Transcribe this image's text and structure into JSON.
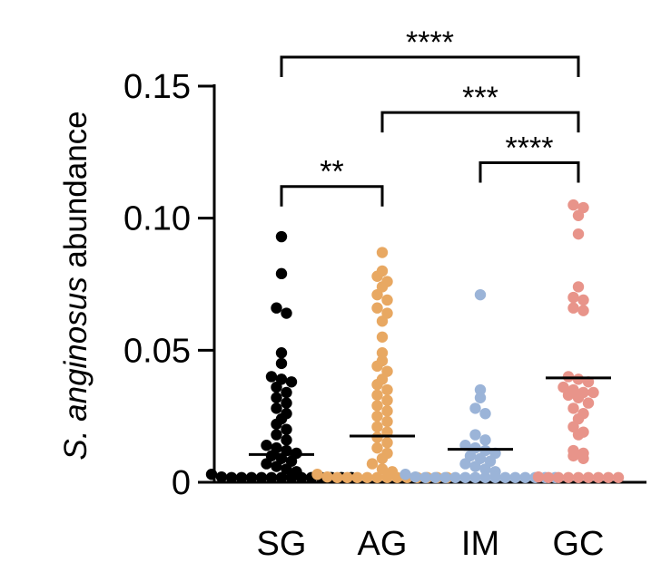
{
  "chart_data": {
    "type": "scatter",
    "title": "",
    "xlabel": "",
    "ylabel": {
      "italic": "S. anginosus",
      "plain": " abundance"
    },
    "ylim": [
      0,
      0.15
    ],
    "yticks": [
      {
        "value": 0,
        "label": "0"
      },
      {
        "value": 0.05,
        "label": "0.05"
      },
      {
        "value": 0.1,
        "label": "0.10"
      },
      {
        "value": 0.15,
        "label": "0.15"
      }
    ],
    "categories": [
      "SG",
      "AG",
      "IM",
      "GC"
    ],
    "series": [
      {
        "category": "SG",
        "color": "#000000",
        "mean": 0.0105,
        "values": [
          0.093,
          0.079,
          0.066,
          0.064,
          0.049,
          0.045,
          0.04,
          0.039,
          0.038,
          0.036,
          0.034,
          0.032,
          0.03,
          0.028,
          0.026,
          0.024,
          0.022,
          0.02,
          0.018,
          0.016,
          0.014,
          0.013,
          0.012,
          0.011,
          0.01,
          0.009,
          0.008,
          0.007,
          0.006,
          0.005,
          0.004,
          0.003,
          0.002,
          0.001,
          0,
          0,
          0,
          0,
          0,
          0,
          0,
          0,
          0,
          0,
          0,
          0
        ]
      },
      {
        "category": "AG",
        "color": "#E8A862",
        "mean": 0.0175,
        "values": [
          0.087,
          0.08,
          0.078,
          0.076,
          0.074,
          0.071,
          0.069,
          0.066,
          0.064,
          0.061,
          0.055,
          0.049,
          0.046,
          0.044,
          0.042,
          0.039,
          0.037,
          0.035,
          0.033,
          0.031,
          0.029,
          0.027,
          0.025,
          0.023,
          0.021,
          0.019,
          0.017,
          0.015,
          0.013,
          0.011,
          0.009,
          0.007,
          0.005,
          0.004,
          0.003,
          0.002,
          0.001,
          0,
          0,
          0,
          0,
          0,
          0,
          0,
          0,
          0,
          0,
          0
        ]
      },
      {
        "category": "IM",
        "color": "#9BB4D8",
        "mean": 0.0125,
        "values": [
          0.071,
          0.035,
          0.032,
          0.028,
          0.026,
          0.018,
          0.016,
          0.014,
          0.013,
          0.012,
          0.011,
          0.01,
          0.009,
          0.008,
          0.007,
          0.006,
          0.005,
          0.004,
          0.003,
          0.002,
          0.001,
          0,
          0,
          0,
          0,
          0,
          0,
          0,
          0,
          0,
          0,
          0,
          0,
          0
        ]
      },
      {
        "category": "GC",
        "color": "#E8948A",
        "mean": 0.0395,
        "values": [
          0.105,
          0.104,
          0.101,
          0.094,
          0.074,
          0.07,
          0.069,
          0.066,
          0.065,
          0.04,
          0.039,
          0.038,
          0.036,
          0.035,
          0.034,
          0.034,
          0.033,
          0.032,
          0.03,
          0.028,
          0.026,
          0.024,
          0.021,
          0.019,
          0.018,
          0.012,
          0.011,
          0.01,
          0.009,
          0.002,
          0,
          0,
          0,
          0,
          0,
          0,
          0,
          0
        ]
      }
    ],
    "comparisons": [
      {
        "from": "SG",
        "to": "GC",
        "label": "****",
        "y": 0.161
      },
      {
        "from": "AG",
        "to": "GC",
        "label": "***",
        "y": 0.14
      },
      {
        "from": "IM",
        "to": "GC",
        "label": "****",
        "y": 0.121
      },
      {
        "from": "SG",
        "to": "AG",
        "label": "**",
        "y": 0.112
      }
    ]
  }
}
